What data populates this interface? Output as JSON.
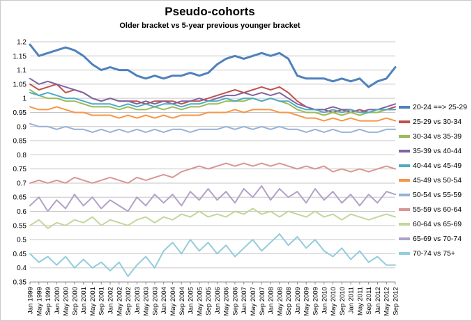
{
  "chart_data": {
    "type": "line",
    "title": "Pseudo-cohorts",
    "subtitle": "Older bracket vs 5-year previous younger bracket",
    "xlabel": "",
    "ylabel": "",
    "ylim": [
      0.35,
      1.2
    ],
    "ytick_step": 0.05,
    "grid": true,
    "legend_position": "right",
    "x_tick_labels": [
      "Jan 1999",
      "May 1999",
      "Sep 1999",
      "Jan 2000",
      "May 2000",
      "Sep 2000",
      "Jan 2001",
      "May 2001",
      "Sep 2001",
      "Jan 2002",
      "May 2002",
      "Sep 2002",
      "Jan 2003",
      "May 2003",
      "Sep 2003",
      "Jan 2004",
      "May 2004",
      "Sep 2004",
      "Jan 2005",
      "May 2005",
      "Sep 2005",
      "Jan 2006",
      "May 2006",
      "Sep 2006",
      "Jan 2007",
      "May 2007",
      "Sep 2007",
      "Jan 2008",
      "May 2008",
      "Sep 2008",
      "Jan 2009",
      "May 2009",
      "Sep 2009",
      "Jan 2010",
      "May 2010",
      "Sep 2010",
      "Jan 2011",
      "May 2011",
      "Sep 2011",
      "Jan 2012",
      "May 2012",
      "Sep 2012"
    ],
    "series": [
      {
        "name": "20-24 ==> 25-29",
        "color": "#4F81BD",
        "width": 3,
        "values": [
          1.19,
          1.15,
          1.16,
          1.17,
          1.18,
          1.17,
          1.15,
          1.12,
          1.1,
          1.11,
          1.1,
          1.1,
          1.08,
          1.07,
          1.08,
          1.07,
          1.08,
          1.08,
          1.09,
          1.08,
          1.09,
          1.12,
          1.14,
          1.15,
          1.14,
          1.15,
          1.16,
          1.15,
          1.16,
          1.14,
          1.08,
          1.07,
          1.07,
          1.07,
          1.06,
          1.07,
          1.06,
          1.07,
          1.04,
          1.06,
          1.07,
          1.11
        ]
      },
      {
        "name": "25-29 vs 30-34",
        "color": "#C0504D",
        "width": 2,
        "values": [
          1.05,
          1.03,
          1.04,
          1.05,
          1.02,
          1.03,
          1.02,
          1.0,
          0.99,
          1.0,
          0.99,
          0.99,
          0.99,
          0.98,
          0.99,
          0.99,
          0.99,
          0.98,
          0.99,
          0.99,
          1.0,
          1.01,
          1.02,
          1.03,
          1.02,
          1.03,
          1.04,
          1.03,
          1.04,
          1.02,
          0.99,
          0.97,
          0.96,
          0.96,
          0.95,
          0.96,
          0.95,
          0.96,
          0.95,
          0.95,
          0.96,
          0.97
        ]
      },
      {
        "name": "30-34 vs 35-39",
        "color": "#9BBB59",
        "width": 2,
        "values": [
          1.03,
          1.01,
          1.0,
          1.0,
          0.99,
          0.99,
          0.98,
          0.97,
          0.97,
          0.97,
          0.96,
          0.97,
          0.96,
          0.96,
          0.97,
          0.96,
          0.97,
          0.96,
          0.97,
          0.97,
          0.98,
          0.98,
          0.99,
          0.99,
          0.99,
          1.0,
          0.99,
          1.0,
          0.99,
          0.98,
          0.96,
          0.95,
          0.95,
          0.94,
          0.95,
          0.94,
          0.95,
          0.94,
          0.95,
          0.95,
          0.96,
          0.96
        ]
      },
      {
        "name": "35-39 vs 40-44",
        "color": "#8064A2",
        "width": 2,
        "values": [
          1.07,
          1.05,
          1.06,
          1.05,
          1.04,
          1.03,
          1.02,
          1.0,
          0.99,
          1.0,
          0.99,
          0.99,
          0.98,
          0.99,
          0.98,
          0.99,
          0.98,
          0.99,
          0.99,
          1.0,
          0.99,
          1.0,
          1.01,
          1.01,
          1.02,
          1.01,
          1.02,
          1.01,
          1.02,
          1.0,
          0.98,
          0.97,
          0.96,
          0.96,
          0.97,
          0.96,
          0.96,
          0.95,
          0.96,
          0.96,
          0.97,
          0.98
        ]
      },
      {
        "name": "40-44 vs 45-49",
        "color": "#4BACC6",
        "width": 2,
        "values": [
          1.02,
          1.01,
          1.02,
          1.01,
          1.0,
          1.0,
          0.99,
          0.98,
          0.98,
          0.98,
          0.97,
          0.98,
          0.97,
          0.98,
          0.97,
          0.98,
          0.98,
          0.97,
          0.98,
          0.98,
          0.99,
          0.99,
          1.0,
          0.99,
          1.0,
          1.0,
          0.99,
          1.0,
          0.99,
          0.99,
          0.97,
          0.96,
          0.96,
          0.95,
          0.96,
          0.95,
          0.96,
          0.95,
          0.95,
          0.96,
          0.96,
          0.96
        ]
      },
      {
        "name": "45-49 vs 50-54",
        "color": "#F79646",
        "width": 2,
        "values": [
          0.97,
          0.96,
          0.96,
          0.97,
          0.96,
          0.95,
          0.95,
          0.94,
          0.94,
          0.94,
          0.93,
          0.94,
          0.93,
          0.94,
          0.93,
          0.94,
          0.93,
          0.94,
          0.94,
          0.94,
          0.95,
          0.95,
          0.95,
          0.96,
          0.95,
          0.96,
          0.96,
          0.96,
          0.95,
          0.95,
          0.94,
          0.93,
          0.93,
          0.92,
          0.93,
          0.92,
          0.93,
          0.92,
          0.92,
          0.92,
          0.93,
          0.92
        ]
      },
      {
        "name": "50-54 vs 55-59",
        "color": "#95B3D7",
        "width": 2,
        "values": [
          0.91,
          0.9,
          0.9,
          0.89,
          0.9,
          0.89,
          0.89,
          0.88,
          0.89,
          0.88,
          0.89,
          0.88,
          0.89,
          0.88,
          0.89,
          0.88,
          0.89,
          0.89,
          0.88,
          0.89,
          0.89,
          0.89,
          0.9,
          0.89,
          0.9,
          0.89,
          0.9,
          0.89,
          0.9,
          0.89,
          0.89,
          0.88,
          0.89,
          0.88,
          0.89,
          0.88,
          0.88,
          0.89,
          0.88,
          0.88,
          0.89,
          0.89
        ]
      },
      {
        "name": "55-59 vs 60-64",
        "color": "#D99694",
        "width": 2,
        "values": [
          0.7,
          0.71,
          0.7,
          0.71,
          0.7,
          0.72,
          0.71,
          0.7,
          0.71,
          0.72,
          0.71,
          0.7,
          0.72,
          0.71,
          0.72,
          0.73,
          0.72,
          0.74,
          0.75,
          0.76,
          0.75,
          0.76,
          0.77,
          0.76,
          0.77,
          0.76,
          0.77,
          0.76,
          0.77,
          0.76,
          0.75,
          0.76,
          0.75,
          0.76,
          0.74,
          0.75,
          0.74,
          0.75,
          0.74,
          0.75,
          0.76,
          0.75
        ]
      },
      {
        "name": "60-64 vs 65-69",
        "color": "#C3D69B",
        "width": 2,
        "values": [
          0.55,
          0.57,
          0.54,
          0.56,
          0.55,
          0.57,
          0.56,
          0.58,
          0.55,
          0.57,
          0.56,
          0.55,
          0.57,
          0.58,
          0.56,
          0.58,
          0.57,
          0.59,
          0.58,
          0.6,
          0.58,
          0.59,
          0.58,
          0.6,
          0.59,
          0.61,
          0.59,
          0.6,
          0.58,
          0.6,
          0.59,
          0.58,
          0.6,
          0.58,
          0.59,
          0.57,
          0.59,
          0.58,
          0.57,
          0.58,
          0.59,
          0.58
        ]
      },
      {
        "name": "65-69 vs 70-74",
        "color": "#B2A1C7",
        "width": 2,
        "values": [
          0.62,
          0.65,
          0.6,
          0.64,
          0.61,
          0.66,
          0.62,
          0.65,
          0.61,
          0.64,
          0.62,
          0.6,
          0.65,
          0.62,
          0.66,
          0.63,
          0.66,
          0.62,
          0.67,
          0.64,
          0.68,
          0.64,
          0.67,
          0.63,
          0.68,
          0.65,
          0.69,
          0.64,
          0.68,
          0.65,
          0.67,
          0.63,
          0.68,
          0.64,
          0.67,
          0.63,
          0.66,
          0.62,
          0.66,
          0.63,
          0.67,
          0.66
        ]
      },
      {
        "name": "70-74 vs 75+",
        "color": "#92CDDC",
        "width": 2,
        "values": [
          0.45,
          0.42,
          0.44,
          0.41,
          0.44,
          0.4,
          0.43,
          0.4,
          0.42,
          0.39,
          0.42,
          0.37,
          0.41,
          0.44,
          0.4,
          0.46,
          0.49,
          0.45,
          0.5,
          0.46,
          0.49,
          0.45,
          0.48,
          0.44,
          0.47,
          0.5,
          0.46,
          0.49,
          0.52,
          0.48,
          0.51,
          0.47,
          0.5,
          0.46,
          0.44,
          0.47,
          0.43,
          0.46,
          0.42,
          0.44,
          0.41,
          0.41
        ]
      }
    ],
    "colors": {
      "gridline": "#C6C6C6",
      "axis": "#898989",
      "text": "#000000"
    }
  }
}
